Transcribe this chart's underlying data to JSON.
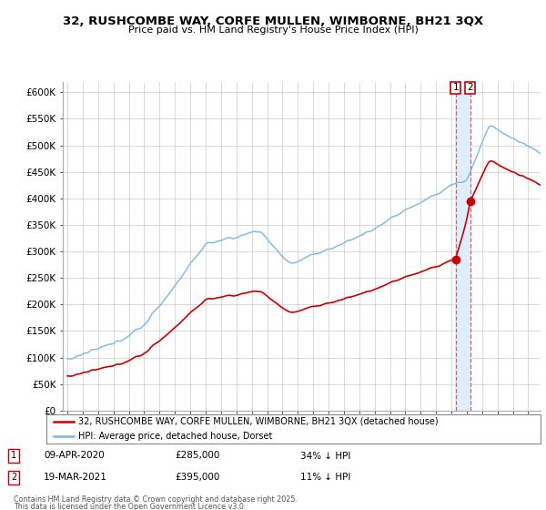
{
  "title_line1": "32, RUSHCOMBE WAY, CORFE MULLEN, WIMBORNE, BH21 3QX",
  "title_line2": "Price paid vs. HM Land Registry's House Price Index (HPI)",
  "ylim": [
    0,
    620000
  ],
  "yticks": [
    0,
    50000,
    100000,
    150000,
    200000,
    250000,
    300000,
    350000,
    400000,
    450000,
    500000,
    550000,
    600000
  ],
  "ytick_labels": [
    "£0",
    "£50K",
    "£100K",
    "£150K",
    "£200K",
    "£250K",
    "£300K",
    "£350K",
    "£400K",
    "£450K",
    "£500K",
    "£550K",
    "£600K"
  ],
  "hpi_color": "#7ab8e8",
  "price_color": "#cc0000",
  "vline_color": "#e06060",
  "shade_color": "#ddeeff",
  "transaction1_date": "09-APR-2020",
  "transaction1_price": 285000,
  "transaction1_hpi_pct": "34% ↓ HPI",
  "transaction1_x": 2020.27,
  "transaction2_date": "19-MAR-2021",
  "transaction2_price": 395000,
  "transaction2_hpi_pct": "11% ↓ HPI",
  "transaction2_x": 2021.21,
  "legend_label_price": "32, RUSHCOMBE WAY, CORFE MULLEN, WIMBORNE, BH21 3QX (detached house)",
  "legend_label_hpi": "HPI: Average price, detached house, Dorset",
  "footer_line1": "Contains HM Land Registry data © Crown copyright and database right 2025.",
  "footer_line2": "This data is licensed under the Open Government Licence v3.0.",
  "background_color": "#ffffff",
  "grid_color": "#cccccc",
  "xmin": 1995,
  "xmax": 2025
}
